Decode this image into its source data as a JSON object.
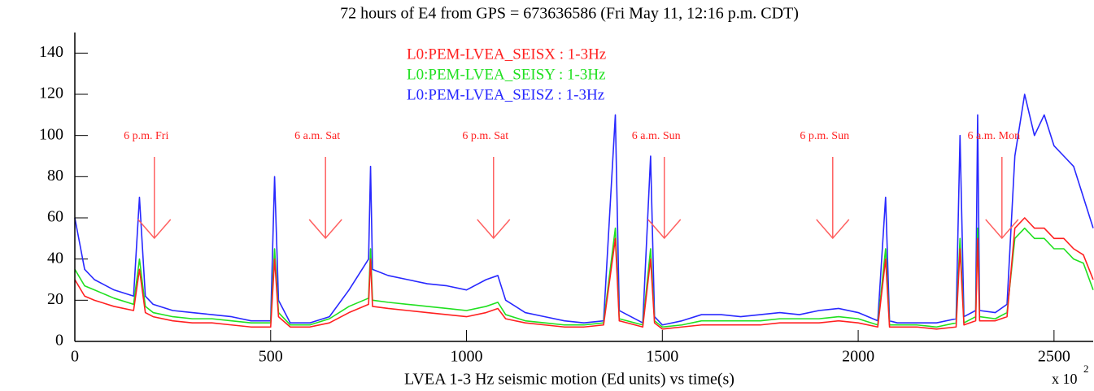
{
  "chart_data": {
    "type": "line",
    "title": "72 hours of E4 from GPS = 673636586 (Fri May 11, 12:16 p.m. CDT)",
    "x_label": "LVEA 1-3 Hz seismic motion (Ed units) vs time(s)",
    "x_multiplier": "x 10",
    "x_multiplier_exponent": "2",
    "xlim": [
      0,
      2600
    ],
    "ylim": [
      0,
      150
    ],
    "xticks": [
      0,
      500,
      1000,
      1500,
      2000,
      2500
    ],
    "yticks": [
      0,
      20,
      40,
      60,
      80,
      100,
      120,
      140
    ],
    "x": [
      0,
      25,
      50,
      100,
      150,
      165,
      180,
      200,
      250,
      300,
      350,
      400,
      450,
      500,
      510,
      520,
      550,
      600,
      650,
      700,
      750,
      755,
      760,
      800,
      850,
      900,
      950,
      1000,
      1050,
      1080,
      1100,
      1150,
      1200,
      1250,
      1300,
      1350,
      1380,
      1390,
      1450,
      1470,
      1480,
      1500,
      1550,
      1600,
      1650,
      1700,
      1750,
      1800,
      1850,
      1900,
      1950,
      2000,
      2050,
      2070,
      2080,
      2100,
      2150,
      2200,
      2250,
      2260,
      2270,
      2300,
      2305,
      2310,
      2350,
      2380,
      2400,
      2425,
      2450,
      2475,
      2500,
      2525,
      2550,
      2575,
      2600
    ],
    "series": [
      {
        "name": "L0:PEM-LVEA_SEISX : 1-3Hz",
        "color": "#ff2020",
        "values": [
          30,
          22,
          20,
          17,
          15,
          35,
          14,
          12,
          10,
          9,
          9,
          8,
          7,
          7,
          40,
          12,
          7,
          7,
          9,
          14,
          18,
          40,
          17,
          16,
          15,
          14,
          13,
          12,
          14,
          16,
          11,
          9,
          8,
          7,
          7,
          8,
          50,
          10,
          7,
          40,
          9,
          6,
          7,
          8,
          8,
          8,
          8,
          9,
          9,
          9,
          10,
          9,
          7,
          40,
          7,
          7,
          7,
          6,
          7,
          45,
          8,
          10,
          50,
          10,
          10,
          12,
          55,
          60,
          55,
          55,
          50,
          50,
          45,
          42,
          30
        ]
      },
      {
        "name": "L0:PEM-LVEA_SEISY : 1-3Hz",
        "color": "#20e020",
        "values": [
          35,
          27,
          25,
          21,
          18,
          40,
          17,
          14,
          12,
          11,
          11,
          10,
          9,
          9,
          45,
          14,
          8,
          8,
          11,
          17,
          21,
          45,
          20,
          19,
          18,
          17,
          16,
          15,
          17,
          19,
          13,
          10,
          9,
          8,
          8,
          9,
          55,
          11,
          8,
          45,
          10,
          7,
          8,
          10,
          10,
          10,
          10,
          11,
          11,
          11,
          12,
          11,
          8,
          45,
          8,
          8,
          8,
          7,
          9,
          50,
          9,
          12,
          55,
          12,
          11,
          14,
          50,
          55,
          50,
          50,
          45,
          45,
          40,
          38,
          25
        ]
      },
      {
        "name": "L0:PEM-LVEA_SEISZ : 1-3Hz",
        "color": "#2828ff",
        "values": [
          60,
          35,
          30,
          25,
          22,
          70,
          22,
          18,
          15,
          14,
          13,
          12,
          10,
          10,
          80,
          20,
          9,
          9,
          12,
          25,
          40,
          85,
          35,
          32,
          30,
          28,
          27,
          25,
          30,
          32,
          20,
          14,
          12,
          10,
          9,
          10,
          110,
          15,
          9,
          90,
          12,
          8,
          10,
          13,
          13,
          12,
          13,
          14,
          13,
          15,
          16,
          14,
          10,
          70,
          10,
          9,
          9,
          9,
          11,
          100,
          12,
          15,
          110,
          15,
          14,
          18,
          90,
          120,
          100,
          110,
          95,
          90,
          85,
          70,
          55
        ]
      }
    ],
    "annotations": [
      {
        "text": "6 p.m. Fri",
        "x": 203
      },
      {
        "text": "6 a.m. Sat",
        "x": 640
      },
      {
        "text": "6 p.m. Sat",
        "x": 1069
      },
      {
        "text": "6 a.m. Sun",
        "x": 1505
      },
      {
        "text": "6 p.m. Sun",
        "x": 1935
      },
      {
        "text": "6 a.m. Mon",
        "x": 2367
      }
    ]
  }
}
